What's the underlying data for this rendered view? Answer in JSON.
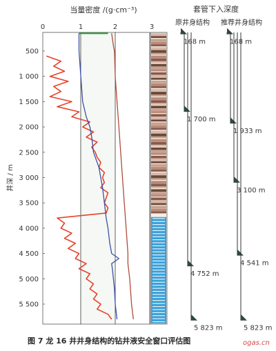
{
  "chart_data": {
    "type": "line",
    "x_axis_title": "当量密度 /(g·cm⁻³)",
    "y_axis_title": "井深 / m",
    "x_ticks": [
      0,
      1,
      2,
      3
    ],
    "y_ticks": [
      500,
      1000,
      1500,
      2000,
      2500,
      3000,
      3500,
      4000,
      4500,
      5000,
      5500
    ],
    "xlim": [
      0,
      3
    ],
    "ylim": [
      0,
      5900
    ],
    "y_inverted": true,
    "grid": false,
    "series": [
      {
        "color": "#e8402a",
        "depth": [
          600,
          700,
          800,
          900,
          1000,
          1100,
          1200,
          1300,
          1400,
          1500,
          1600,
          1700,
          1800,
          1900,
          2000,
          2100,
          2200,
          2300,
          2400,
          2500,
          2600,
          2700,
          2800,
          2900,
          3000,
          3100,
          3200,
          3300,
          3400,
          3500,
          3600,
          3700,
          3800,
          3900,
          4000,
          4100,
          4200,
          4300,
          4400,
          4500,
          4600,
          4700,
          4800,
          4900,
          5000,
          5100,
          5200,
          5300,
          5400,
          5500,
          5600,
          5700,
          5800
        ],
        "value": [
          0.1,
          0.5,
          0.3,
          0.6,
          0.2,
          0.7,
          0.3,
          0.5,
          0.2,
          0.8,
          0.4,
          1.0,
          0.8,
          1.3,
          1.1,
          1.4,
          1.2,
          1.5,
          1.35,
          1.45,
          1.5,
          1.6,
          1.55,
          1.7,
          1.65,
          1.7,
          1.6,
          1.8,
          1.75,
          1.7,
          1.8,
          1.75,
          0.4,
          0.6,
          0.5,
          0.8,
          0.6,
          0.9,
          0.7,
          1.0,
          0.9,
          1.2,
          1.0,
          1.3,
          1.2,
          1.4,
          1.3,
          1.5,
          1.4,
          1.6,
          1.5,
          1.8,
          1.9
        ]
      },
      {
        "color": "#3a4fa8",
        "depth": [
          150,
          500,
          1000,
          1500,
          1800,
          2000,
          2200,
          2500,
          2800,
          3000,
          3200,
          3500,
          3800,
          4000,
          4300,
          4500,
          4600,
          4700,
          4800,
          5000,
          5200,
          5500,
          5800
        ],
        "value": [
          1.0,
          1.0,
          1.05,
          1.1,
          1.2,
          1.3,
          1.35,
          1.4,
          1.55,
          1.6,
          1.65,
          1.7,
          1.75,
          1.8,
          1.85,
          1.9,
          2.1,
          1.9,
          1.92,
          1.95,
          1.98,
          2.0,
          2.05
        ]
      },
      {
        "color": "#b04a3a",
        "depth": [
          150,
          400,
          500,
          1000,
          1500,
          2000,
          2500,
          3000,
          3500,
          4000,
          4500,
          4700,
          5000,
          5500,
          5800
        ],
        "value": [
          1.9,
          1.95,
          1.98,
          2.0,
          2.05,
          2.1,
          2.15,
          2.2,
          2.25,
          2.3,
          2.35,
          2.35,
          2.4,
          2.45,
          2.5
        ]
      },
      {
        "color": "#2d9a3a",
        "depth": [
          150,
          150
        ],
        "value": [
          1.0,
          1.8
        ]
      }
    ]
  },
  "casing": {
    "title": "套管下入深度",
    "original": {
      "label": "原井身结构",
      "shoes": [
        {
          "depth": 168,
          "text": "168 m"
        },
        {
          "depth": 1700,
          "text": "1 700 m"
        },
        {
          "depth": 4752,
          "text": "4 752 m"
        },
        {
          "depth": 5823,
          "text": "5 823 m"
        }
      ]
    },
    "recommended": {
      "label": "推荐井身结构",
      "shoes": [
        {
          "depth": 168,
          "text": "168 m"
        },
        {
          "depth": 1933,
          "text": "1 933 m"
        },
        {
          "depth": 3100,
          "text": "3 100 m"
        },
        {
          "depth": 4541,
          "text": "4 541 m"
        },
        {
          "depth": 5823,
          "text": "5 823 m"
        }
      ]
    }
  },
  "lithology_track": {
    "label": "3"
  },
  "caption": "图 7   龙 16 井井身结构的钻井液安全窗口评估图",
  "watermark": "ogas.cn"
}
